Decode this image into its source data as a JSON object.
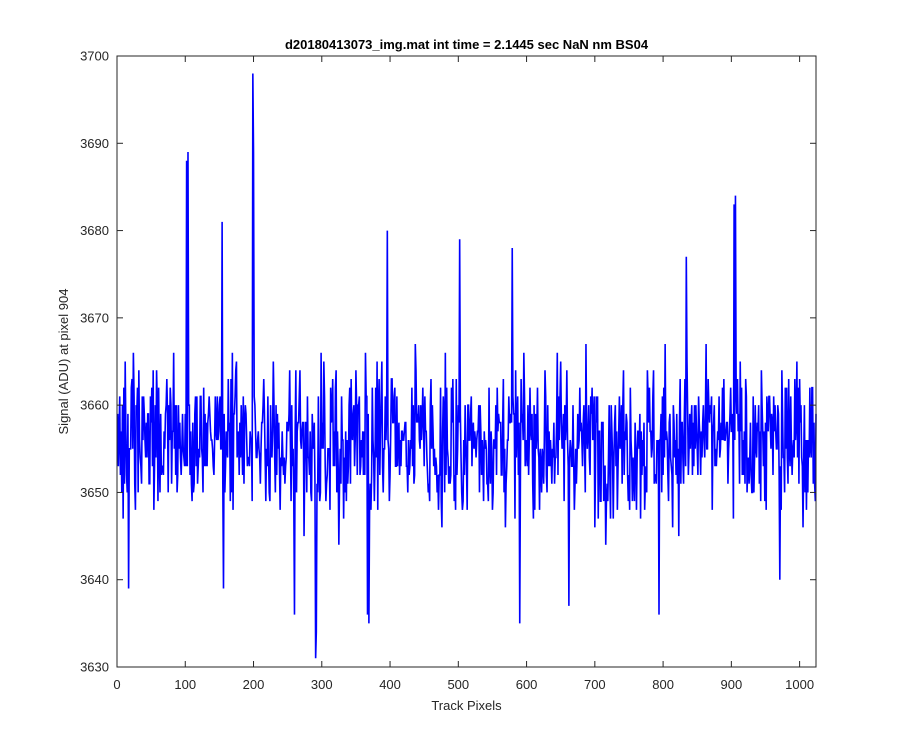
{
  "chart_data": {
    "type": "line",
    "title": "d20180413073_img.mat int time = 2.1445 sec  NaN nm BS04",
    "xlabel": "Track Pixels",
    "ylabel": "Signal (ADU) at pixel 904",
    "xlim": [
      0,
      1024
    ],
    "ylim": [
      3630,
      3700
    ],
    "x_ticks": [
      0,
      100,
      200,
      300,
      400,
      500,
      600,
      700,
      800,
      900,
      1000
    ],
    "y_ticks": [
      3630,
      3640,
      3650,
      3660,
      3670,
      3680,
      3690,
      3700
    ],
    "grid": false,
    "legend": "none",
    "series": [
      {
        "color": "#0000ff",
        "baseline": 3656,
        "approx_range": [
          3631,
          3698
        ],
        "n_points": 1024,
        "peaks": [
          {
            "x": 101,
            "y": 3688
          },
          {
            "x": 103,
            "y": 3689
          },
          {
            "x": 153,
            "y": 3681
          },
          {
            "x": 198,
            "y": 3698
          },
          {
            "x": 199,
            "y": 3689
          },
          {
            "x": 395,
            "y": 3680
          },
          {
            "x": 501,
            "y": 3679
          },
          {
            "x": 578,
            "y": 3678
          },
          {
            "x": 833,
            "y": 3677
          },
          {
            "x": 903,
            "y": 3683
          },
          {
            "x": 905,
            "y": 3684
          }
        ],
        "troughs": [
          {
            "x": 16,
            "y": 3639
          },
          {
            "x": 155,
            "y": 3639
          },
          {
            "x": 259,
            "y": 3636
          },
          {
            "x": 290,
            "y": 3631
          },
          {
            "x": 291,
            "y": 3634
          },
          {
            "x": 366,
            "y": 3636
          },
          {
            "x": 368,
            "y": 3635
          },
          {
            "x": 589,
            "y": 3635
          },
          {
            "x": 661,
            "y": 3637
          },
          {
            "x": 793,
            "y": 3636
          },
          {
            "x": 970,
            "y": 3640
          }
        ]
      }
    ]
  }
}
